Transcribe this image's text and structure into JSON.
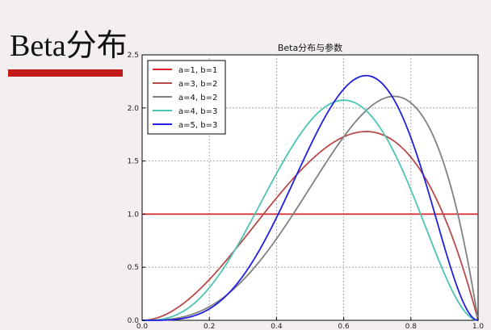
{
  "slide": {
    "title": "Beta分布"
  },
  "colors": {
    "accent_bar": "#c31a1a",
    "background": "#f3eef0"
  },
  "chart_data": {
    "type": "line",
    "title": "Beta分布与参数",
    "xlabel": "",
    "ylabel": "",
    "xlim": [
      0.0,
      1.0
    ],
    "ylim": [
      0.0,
      2.5
    ],
    "x_ticks": [
      "0.0",
      "0.2",
      "0.4",
      "0.6",
      "0.8",
      "1.0"
    ],
    "y_ticks": [
      "0.0",
      "0.5",
      "1.0",
      "1.5",
      "2.0",
      "2.5"
    ],
    "grid": true,
    "legend_position": "top-left",
    "series": [
      {
        "name": "a=1, b=1",
        "color": "#d62728",
        "a": 1,
        "b": 1
      },
      {
        "name": "a=3, b=2",
        "color": "#b84a4a",
        "a": 3,
        "b": 2
      },
      {
        "name": "a=4, b=2",
        "color": "#808080",
        "a": 4,
        "b": 2
      },
      {
        "name": "a=4, b=3",
        "color": "#4cc4b4",
        "a": 4,
        "b": 3
      },
      {
        "name": "a=5, b=3",
        "color": "#2020e0",
        "a": 5,
        "b": 3
      }
    ]
  }
}
